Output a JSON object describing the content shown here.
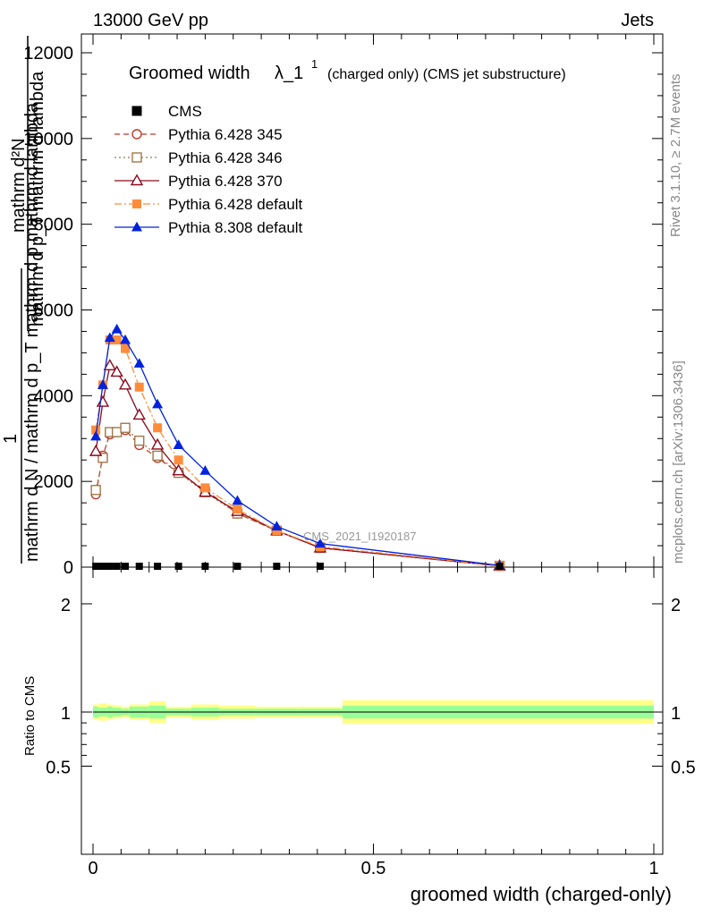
{
  "header": {
    "left": "13000 GeV pp",
    "right": "Jets"
  },
  "side": {
    "top": "Rivet 3.1.10, ≥ 2.7M events",
    "bottom": "mcplots.cern.ch [arXiv:1306.3436]"
  },
  "watermark": "CMS_2021_I1920187",
  "chart_data": [
    {
      "type": "line",
      "title": "Groomed widthλ_1¹ (charged only) (CMS jet substructure)",
      "title_main": "Groomed width",
      "title_lambda": "λ_1",
      "title_sup": "1",
      "title_tail": "(charged only) (CMS jet substructure)",
      "ylabel_num": "mathrm d²N",
      "ylabel_den": "mathrm d p_T mathrm d lambda",
      "ylabel_one": "1",
      "ylabel_lower": "mathrm d N / mathrm d p_T mathrm d p mathrm d lambda",
      "xlim": [
        0,
        1
      ],
      "ylim": [
        0,
        12000
      ],
      "yticks": [
        {
          "v": 0,
          "l": "0"
        },
        {
          "v": 2000,
          "l": "2000"
        },
        {
          "v": 4000,
          "l": "4000"
        },
        {
          "v": 6000,
          "l": "6000"
        },
        {
          "v": 8000,
          "l": "8000"
        },
        {
          "v": 10000,
          "l": "10000"
        },
        {
          "v": 12000,
          "l": "12000"
        }
      ],
      "legend_position": "top-left",
      "x": [
        0.005,
        0.0175,
        0.03,
        0.0425,
        0.0575,
        0.0825,
        0.115,
        0.1525,
        0.2,
        0.2575,
        0.3275,
        0.405,
        0.725
      ],
      "series": [
        {
          "name": "CMS",
          "color": "#000000",
          "marker": "square-filled",
          "line": "none",
          "values": [
            0,
            0,
            0,
            0,
            0,
            0,
            0,
            0,
            0,
            0,
            0,
            0,
            0
          ]
        },
        {
          "name": "Pythia 6.428 345",
          "color": "#c0392b",
          "marker": "circle-open",
          "line": "dashed",
          "values": [
            1700,
            2600,
            3100,
            3150,
            3200,
            2850,
            2550,
            2200,
            1800,
            1250,
            850,
            450,
            30
          ]
        },
        {
          "name": "Pythia 6.428 346",
          "color": "#a1784c",
          "marker": "square-open",
          "line": "dotted",
          "values": [
            1800,
            2550,
            3150,
            3150,
            3250,
            2950,
            2600,
            2200,
            1750,
            1250,
            850,
            450,
            30
          ]
        },
        {
          "name": "Pythia 6.428 370",
          "color": "#8b0a1e",
          "marker": "triangle-open",
          "line": "solid",
          "values": [
            2700,
            3850,
            4700,
            4550,
            4250,
            3550,
            2850,
            2250,
            1750,
            1300,
            850,
            450,
            30
          ]
        },
        {
          "name": "Pythia 6.428 default",
          "color": "#ff8c3a",
          "marker": "square-filled",
          "line": "dashdot",
          "values": [
            3200,
            4250,
            5300,
            5300,
            5100,
            4200,
            3250,
            2500,
            1850,
            1350,
            850,
            480,
            35
          ]
        },
        {
          "name": "Pythia 8.308 default",
          "color": "#0022dd",
          "marker": "triangle-filled",
          "line": "solid",
          "values": [
            3050,
            4250,
            5350,
            5550,
            5300,
            4750,
            3800,
            2850,
            2250,
            1550,
            950,
            550,
            40
          ]
        }
      ]
    },
    {
      "type": "area",
      "ylabel": "Ratio to CMS",
      "xlabel": "groomed width (charged-only)",
      "xlim": [
        0,
        1
      ],
      "ylim": [
        0.4,
        2.3
      ],
      "yticks": [
        {
          "v": 0.5,
          "l": "0.5"
        },
        {
          "v": 1,
          "l": "1"
        },
        {
          "v": 2,
          "l": "2"
        }
      ],
      "xticks": [
        {
          "v": 0,
          "l": "0"
        },
        {
          "v": 0.5,
          "l": "0.5"
        },
        {
          "v": 1,
          "l": "1"
        }
      ],
      "bin_edges": [
        0,
        0.01,
        0.025,
        0.035,
        0.05,
        0.065,
        0.1,
        0.13,
        0.175,
        0.225,
        0.29,
        0.365,
        0.445,
        1.0
      ],
      "stat_band": [
        [
          0.95,
          1.05
        ],
        [
          0.96,
          1.04
        ],
        [
          0.95,
          1.05
        ],
        [
          0.96,
          1.04
        ],
        [
          0.97,
          1.03
        ],
        [
          0.95,
          1.05
        ],
        [
          0.94,
          1.06
        ],
        [
          0.97,
          1.03
        ],
        [
          0.96,
          1.04
        ],
        [
          0.97,
          1.03
        ],
        [
          0.97,
          1.03
        ],
        [
          0.97,
          1.03
        ],
        [
          0.94,
          1.06
        ]
      ],
      "total_band": [
        [
          0.93,
          1.07
        ],
        [
          0.92,
          1.08
        ],
        [
          0.93,
          1.07
        ],
        [
          0.94,
          1.06
        ],
        [
          0.95,
          1.05
        ],
        [
          0.93,
          1.07
        ],
        [
          0.9,
          1.1
        ],
        [
          0.95,
          1.05
        ],
        [
          0.93,
          1.07
        ],
        [
          0.94,
          1.06
        ],
        [
          0.95,
          1.05
        ],
        [
          0.95,
          1.05
        ],
        [
          0.89,
          1.11
        ]
      ],
      "stat_color": "#99ff99",
      "total_color": "#ffff88",
      "reference_line": 1
    }
  ]
}
